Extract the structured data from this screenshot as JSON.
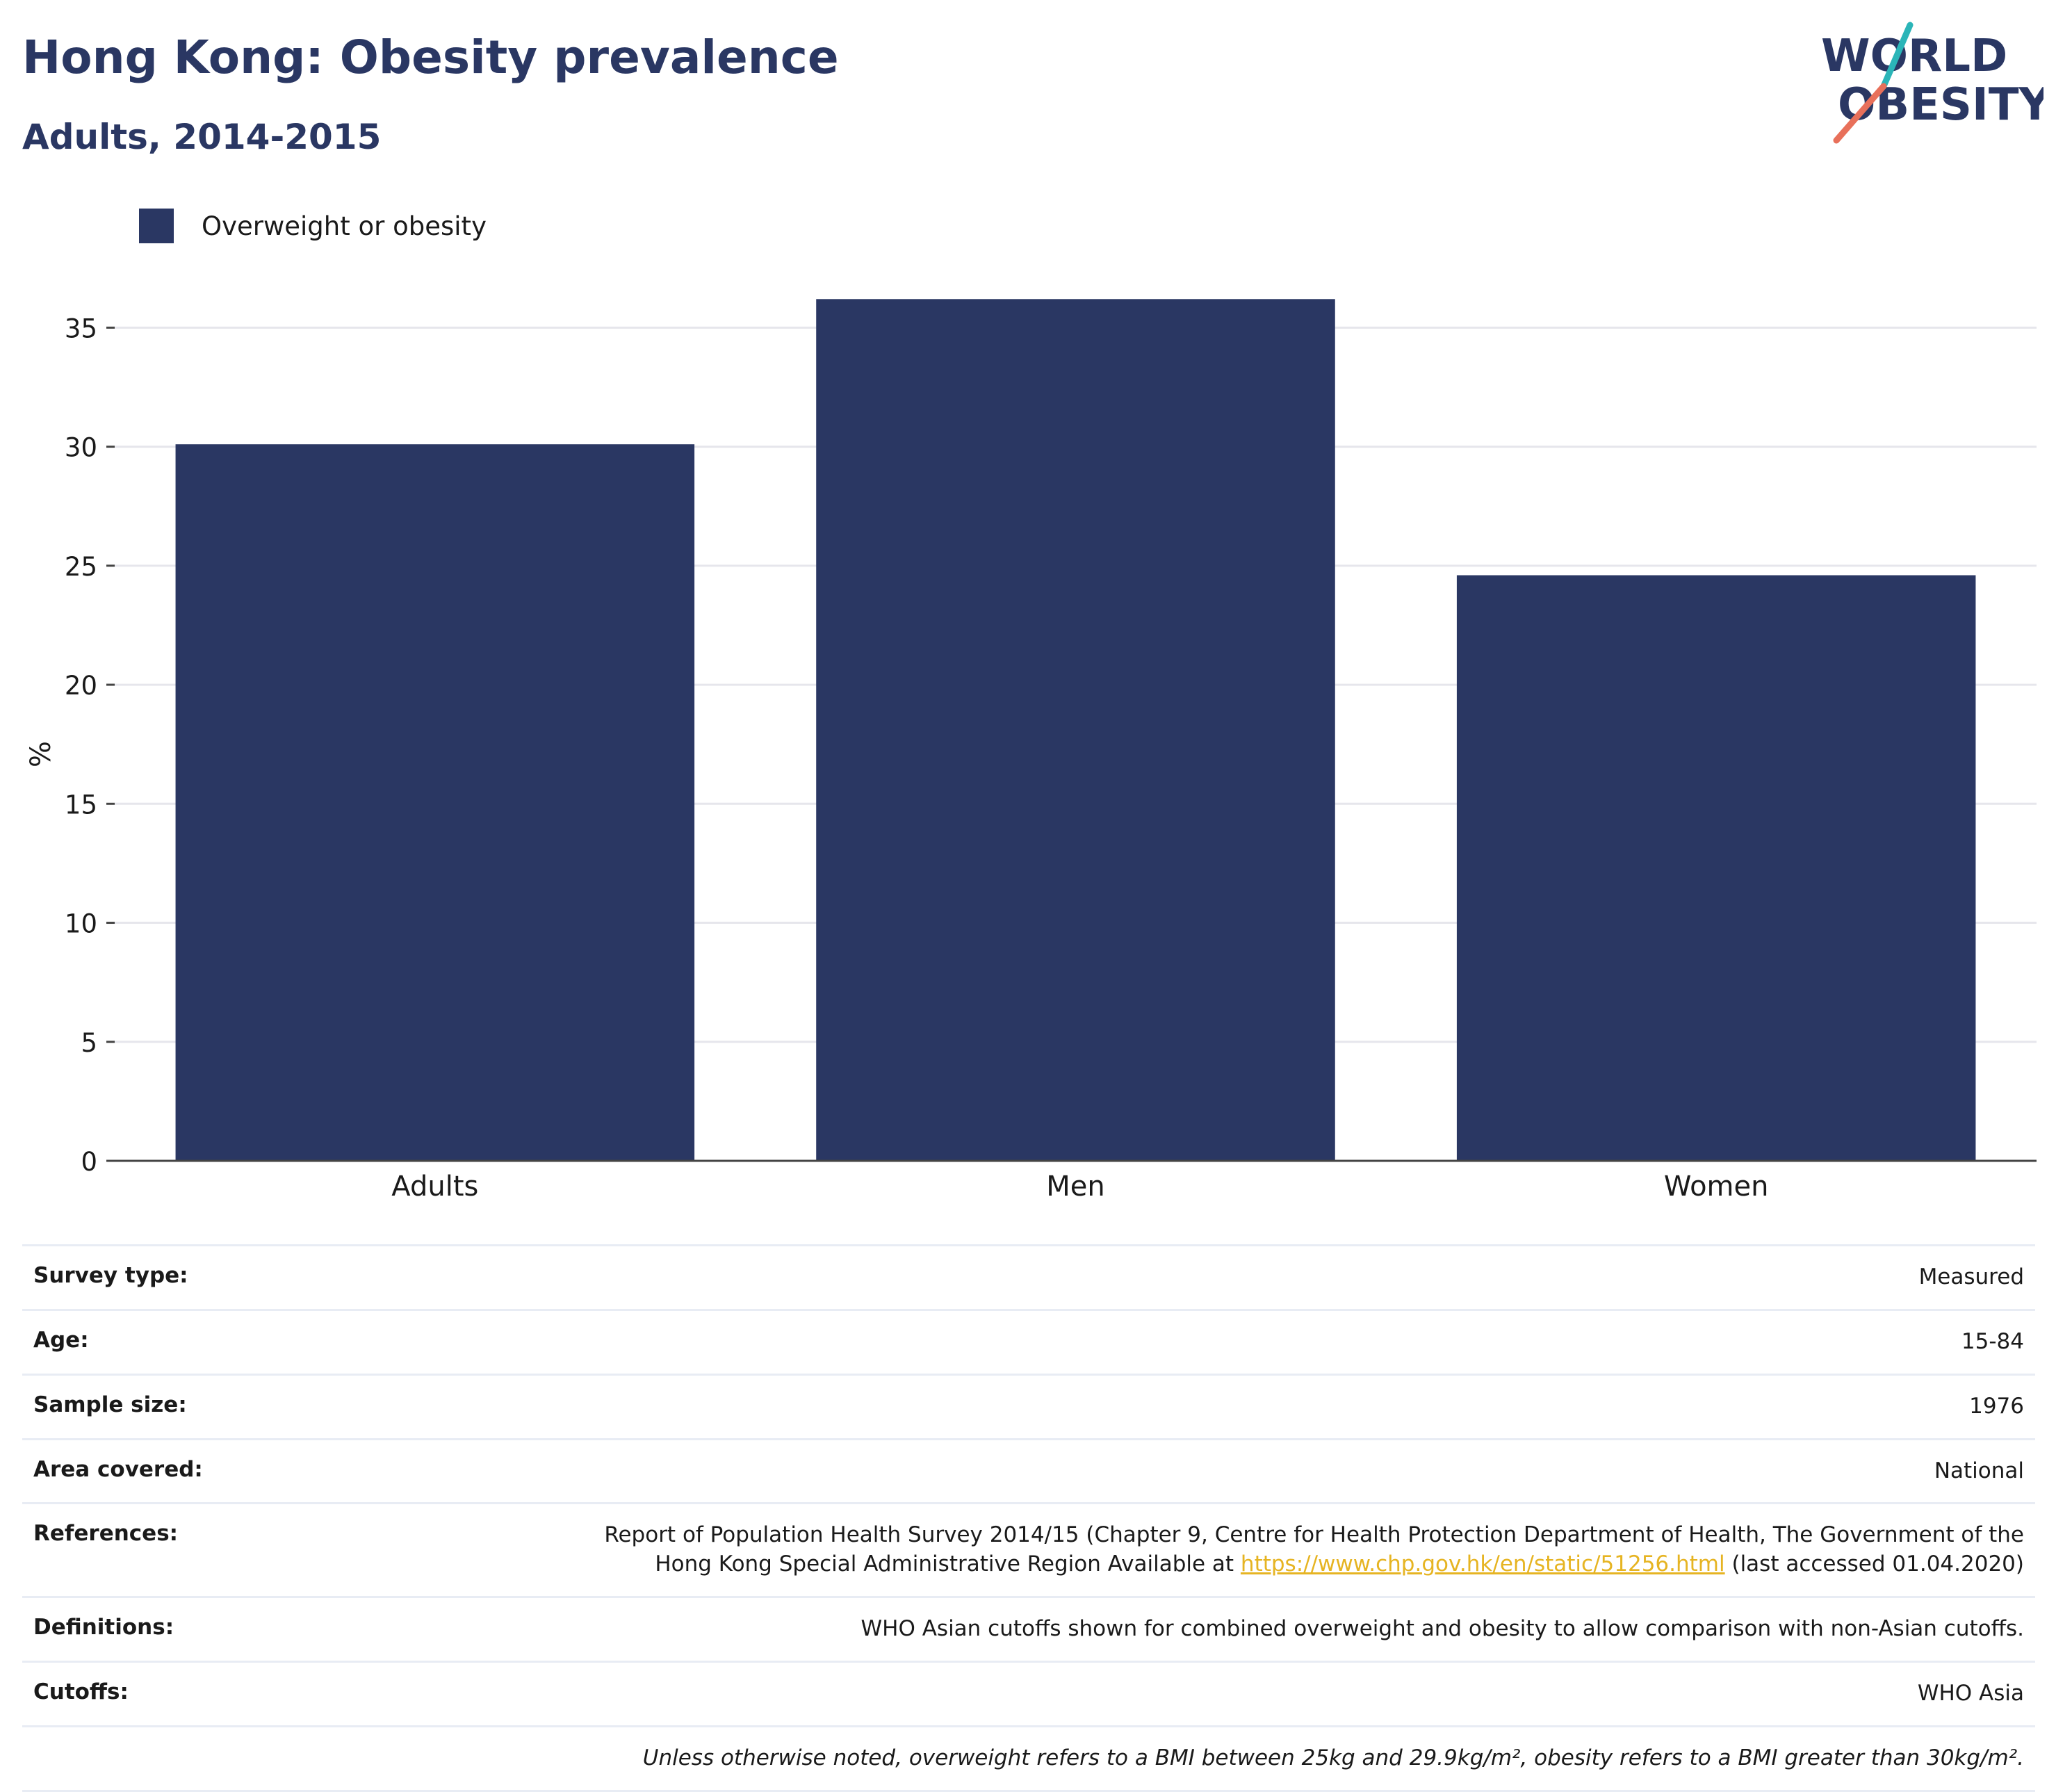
{
  "header": {
    "title": "Hong Kong: Obesity prevalence",
    "subtitle": "Adults, 2014-2015"
  },
  "logo": {
    "line1": "WORLD",
    "line2": "OBESITY"
  },
  "colors": {
    "bar": "#2a3763",
    "title": "#2a3763",
    "link": "#e6b422",
    "grid": "#e6e6ec",
    "logo_teal": "#2bb5b8",
    "logo_coral": "#e8705a"
  },
  "chart_data": {
    "type": "bar",
    "title": "",
    "xlabel": "",
    "ylabel": "%",
    "categories": [
      "Adults",
      "Men",
      "Women"
    ],
    "series": [
      {
        "name": "Overweight or obesity",
        "values": [
          30.1,
          36.2,
          24.6
        ]
      }
    ],
    "ylim": [
      0,
      36.5
    ],
    "yticks": [
      0,
      5,
      10,
      15,
      20,
      25,
      30,
      35
    ],
    "grid": true,
    "legend_position": "top-left"
  },
  "info": {
    "rows": [
      {
        "label": "Survey type:",
        "value": "Measured"
      },
      {
        "label": "Age:",
        "value": "15-84"
      },
      {
        "label": "Sample size:",
        "value": "1976"
      },
      {
        "label": "Area covered:",
        "value": "National"
      }
    ],
    "references": {
      "label": "References:",
      "text_before": "Report of Population Health Survey 2014/15 (Chapter 9, Centre for Health Protection Department of Health, The Government of the Hong Kong Special Administrative Region Available at ",
      "link": "https://www.chp.gov.hk/en/static/51256.html",
      "text_after": " (last accessed 01.04.2020)"
    },
    "definitions": {
      "label": "Definitions:",
      "value": "WHO Asian cutoffs shown for combined overweight and obesity to allow comparison with non-Asian cutoffs."
    },
    "cutoffs": {
      "label": "Cutoffs:",
      "value": "WHO Asia"
    },
    "note": "Unless otherwise noted, overweight refers to a BMI between 25kg and 29.9kg/m², obesity refers to a BMI greater than 30kg/m²."
  }
}
